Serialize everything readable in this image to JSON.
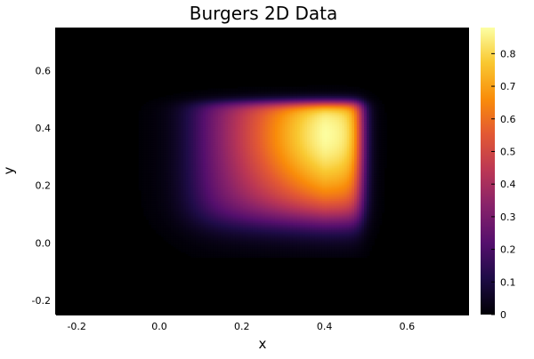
{
  "chart_data": {
    "type": "heatmap",
    "title": "Burgers 2D Data",
    "xlabel": "x",
    "ylabel": "y",
    "xlim": [
      -0.25,
      0.75
    ],
    "ylim": [
      -0.25,
      0.75
    ],
    "x_ticks": [
      -0.2,
      0.0,
      0.2,
      0.4,
      0.6
    ],
    "x_tick_labels": [
      "-0.2",
      "0.0",
      "0.2",
      "0.4",
      "0.6"
    ],
    "y_ticks": [
      -0.2,
      0.0,
      0.2,
      0.4,
      0.6
    ],
    "y_tick_labels": [
      "-0.2",
      "0.0",
      "0.2",
      "0.4",
      "0.6"
    ],
    "colorbar": {
      "colormap": "inferno",
      "range": [
        0,
        0.88
      ],
      "ticks": [
        0,
        0.1,
        0.2,
        0.3,
        0.4,
        0.5,
        0.6,
        0.7,
        0.8
      ],
      "tick_labels": [
        "0",
        "0.1",
        "0.2",
        "0.3",
        "0.4",
        "0.5",
        "0.6",
        "0.7",
        "0.8"
      ]
    },
    "field_summary": {
      "support_x": [
        0.0,
        0.5
      ],
      "support_y": [
        0.0,
        0.5
      ],
      "peak_value": 0.88,
      "peak_x": 0.38,
      "peak_y": 0.38,
      "background_value": 0.0
    },
    "grid": false,
    "legend": "none"
  }
}
